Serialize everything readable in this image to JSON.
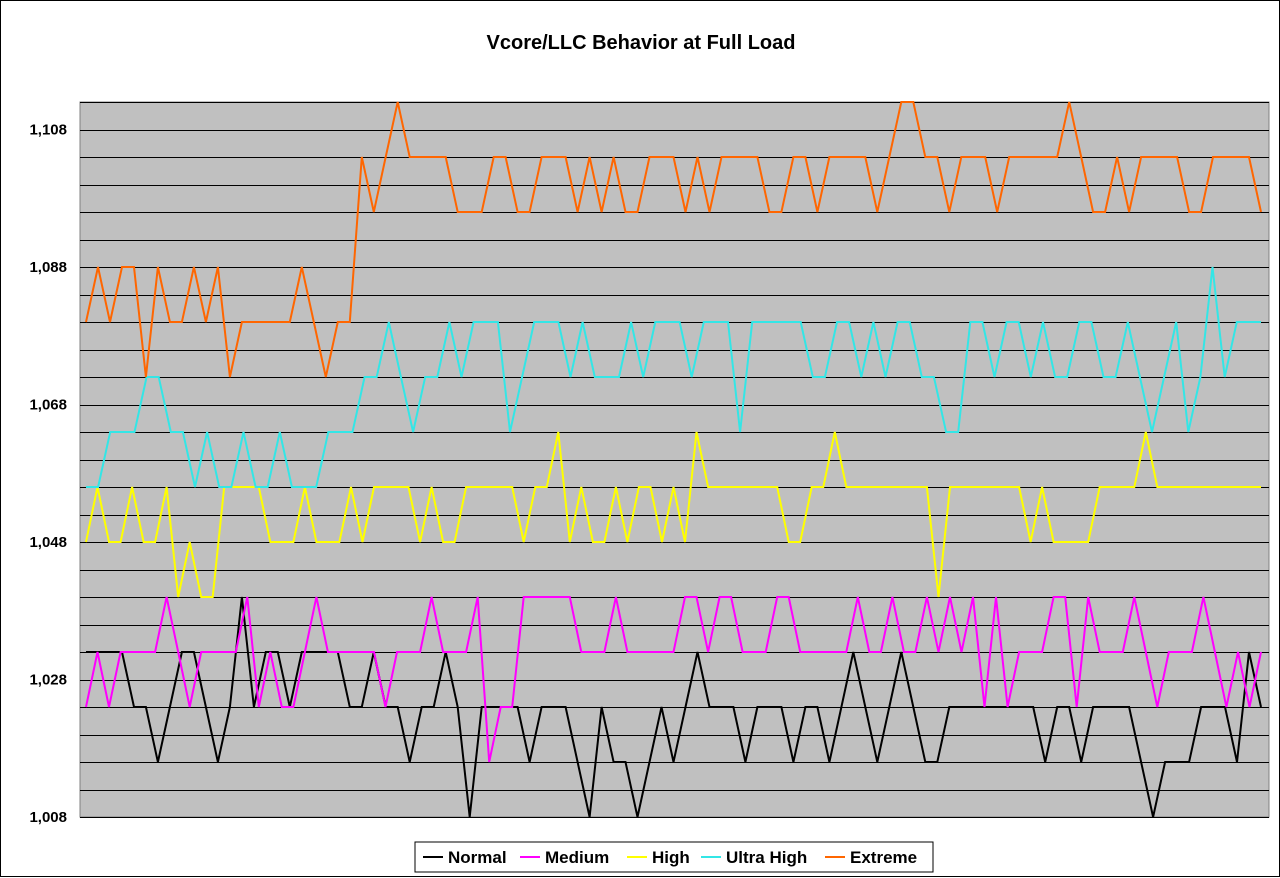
{
  "chart_data": {
    "type": "line",
    "title": "Vcore/LLC Behavior at Full Load",
    "xlabel": "",
    "ylabel": "",
    "ylim": [
      1.008,
      1.112
    ],
    "y_ticks": [
      1.008,
      1.028,
      1.048,
      1.068,
      1.088,
      1.108
    ],
    "y_tick_labels": [
      "1,008",
      "1,028",
      "1,048",
      "1,068",
      "1,088",
      "1,108"
    ],
    "y_minor_step": 0.004,
    "grid": true,
    "legend_position": "bottom",
    "plot_background": "#c0c0c0",
    "series": [
      {
        "name": "Normal",
        "color": "#000000",
        "values": [
          1.032,
          1.032,
          1.032,
          1.032,
          1.024,
          1.024,
          1.016,
          1.024,
          1.032,
          1.032,
          1.024,
          1.016,
          1.024,
          1.04,
          1.024,
          1.032,
          1.032,
          1.024,
          1.032,
          1.032,
          1.032,
          1.032,
          1.024,
          1.024,
          1.032,
          1.024,
          1.024,
          1.016,
          1.024,
          1.024,
          1.032,
          1.024,
          1.008,
          1.024,
          1.024,
          1.024,
          1.024,
          1.016,
          1.024,
          1.024,
          1.024,
          1.016,
          1.008,
          1.024,
          1.016,
          1.016,
          1.008,
          1.016,
          1.024,
          1.016,
          1.024,
          1.032,
          1.024,
          1.024,
          1.024,
          1.016,
          1.024,
          1.024,
          1.024,
          1.016,
          1.024,
          1.024,
          1.016,
          1.024,
          1.032,
          1.024,
          1.016,
          1.024,
          1.032,
          1.024,
          1.016,
          1.016,
          1.024,
          1.024,
          1.024,
          1.024,
          1.024,
          1.024,
          1.024,
          1.024,
          1.016,
          1.024,
          1.024,
          1.016,
          1.024,
          1.024,
          1.024,
          1.024,
          1.016,
          1.008,
          1.016,
          1.016,
          1.016,
          1.024,
          1.024,
          1.024,
          1.016,
          1.032,
          1.024
        ]
      },
      {
        "name": "Medium",
        "color": "#ff00ff",
        "values": [
          1.024,
          1.032,
          1.024,
          1.032,
          1.032,
          1.032,
          1.032,
          1.04,
          1.032,
          1.024,
          1.032,
          1.032,
          1.032,
          1.032,
          1.04,
          1.024,
          1.032,
          1.024,
          1.024,
          1.032,
          1.04,
          1.032,
          1.032,
          1.032,
          1.032,
          1.032,
          1.024,
          1.032,
          1.032,
          1.032,
          1.04,
          1.032,
          1.032,
          1.032,
          1.04,
          1.016,
          1.024,
          1.024,
          1.04,
          1.04,
          1.04,
          1.04,
          1.04,
          1.032,
          1.032,
          1.032,
          1.04,
          1.032,
          1.032,
          1.032,
          1.032,
          1.032,
          1.04,
          1.04,
          1.032,
          1.04,
          1.04,
          1.032,
          1.032,
          1.032,
          1.04,
          1.04,
          1.032,
          1.032,
          1.032,
          1.032,
          1.032,
          1.04,
          1.032,
          1.032,
          1.04,
          1.032,
          1.032,
          1.04,
          1.032,
          1.04,
          1.032,
          1.04,
          1.024,
          1.04,
          1.024,
          1.032,
          1.032,
          1.032,
          1.04,
          1.04,
          1.024,
          1.04,
          1.032,
          1.032,
          1.032,
          1.04,
          1.032,
          1.024,
          1.032,
          1.032,
          1.032,
          1.04,
          1.032,
          1.024,
          1.032,
          1.024,
          1.032
        ]
      },
      {
        "name": "High",
        "color": "#ffff00",
        "values": [
          1.048,
          1.056,
          1.048,
          1.048,
          1.056,
          1.048,
          1.048,
          1.056,
          1.04,
          1.048,
          1.04,
          1.04,
          1.056,
          1.056,
          1.056,
          1.056,
          1.048,
          1.048,
          1.048,
          1.056,
          1.048,
          1.048,
          1.048,
          1.056,
          1.048,
          1.056,
          1.056,
          1.056,
          1.056,
          1.048,
          1.056,
          1.048,
          1.048,
          1.056,
          1.056,
          1.056,
          1.056,
          1.056,
          1.048,
          1.056,
          1.056,
          1.064,
          1.048,
          1.056,
          1.048,
          1.048,
          1.056,
          1.048,
          1.056,
          1.056,
          1.048,
          1.056,
          1.048,
          1.064,
          1.056,
          1.056,
          1.056,
          1.056,
          1.056,
          1.056,
          1.056,
          1.048,
          1.048,
          1.056,
          1.056,
          1.064,
          1.056,
          1.056,
          1.056,
          1.056,
          1.056,
          1.056,
          1.056,
          1.056,
          1.04,
          1.056,
          1.056,
          1.056,
          1.056,
          1.056,
          1.056,
          1.056,
          1.048,
          1.056,
          1.048,
          1.048,
          1.048,
          1.048,
          1.056,
          1.056,
          1.056,
          1.056,
          1.064,
          1.056,
          1.056,
          1.056,
          1.056,
          1.056,
          1.056,
          1.056,
          1.056,
          1.056,
          1.056
        ]
      },
      {
        "name": "Ultra High",
        "color": "#33e6e6",
        "values": [
          1.056,
          1.056,
          1.064,
          1.064,
          1.064,
          1.072,
          1.072,
          1.064,
          1.064,
          1.056,
          1.064,
          1.056,
          1.056,
          1.064,
          1.056,
          1.056,
          1.064,
          1.056,
          1.056,
          1.056,
          1.064,
          1.064,
          1.064,
          1.072,
          1.072,
          1.08,
          1.072,
          1.064,
          1.072,
          1.072,
          1.08,
          1.072,
          1.08,
          1.08,
          1.08,
          1.064,
          1.072,
          1.08,
          1.08,
          1.08,
          1.072,
          1.08,
          1.072,
          1.072,
          1.072,
          1.08,
          1.072,
          1.08,
          1.08,
          1.08,
          1.072,
          1.08,
          1.08,
          1.08,
          1.064,
          1.08,
          1.08,
          1.08,
          1.08,
          1.08,
          1.072,
          1.072,
          1.08,
          1.08,
          1.072,
          1.08,
          1.072,
          1.08,
          1.08,
          1.072,
          1.072,
          1.064,
          1.064,
          1.08,
          1.08,
          1.072,
          1.08,
          1.08,
          1.072,
          1.08,
          1.072,
          1.072,
          1.08,
          1.08,
          1.072,
          1.072,
          1.08,
          1.072,
          1.064,
          1.072,
          1.08,
          1.064,
          1.072,
          1.088,
          1.072,
          1.08,
          1.08,
          1.08
        ]
      },
      {
        "name": "Extreme",
        "color": "#ff6600",
        "values": [
          1.08,
          1.088,
          1.08,
          1.088,
          1.088,
          1.072,
          1.088,
          1.08,
          1.08,
          1.088,
          1.08,
          1.088,
          1.072,
          1.08,
          1.08,
          1.08,
          1.08,
          1.08,
          1.088,
          1.08,
          1.072,
          1.08,
          1.08,
          1.104,
          1.096,
          1.104,
          1.112,
          1.104,
          1.104,
          1.104,
          1.104,
          1.096,
          1.096,
          1.096,
          1.104,
          1.104,
          1.096,
          1.096,
          1.104,
          1.104,
          1.104,
          1.096,
          1.104,
          1.096,
          1.104,
          1.096,
          1.096,
          1.104,
          1.104,
          1.104,
          1.096,
          1.104,
          1.096,
          1.104,
          1.104,
          1.104,
          1.104,
          1.096,
          1.096,
          1.104,
          1.104,
          1.096,
          1.104,
          1.104,
          1.104,
          1.104,
          1.096,
          1.104,
          1.112,
          1.112,
          1.104,
          1.104,
          1.096,
          1.104,
          1.104,
          1.104,
          1.096,
          1.104,
          1.104,
          1.104,
          1.104,
          1.104,
          1.112,
          1.104,
          1.096,
          1.096,
          1.104,
          1.096,
          1.104,
          1.104,
          1.104,
          1.104,
          1.096,
          1.096,
          1.104,
          1.104,
          1.104,
          1.104,
          1.096
        ]
      }
    ]
  }
}
